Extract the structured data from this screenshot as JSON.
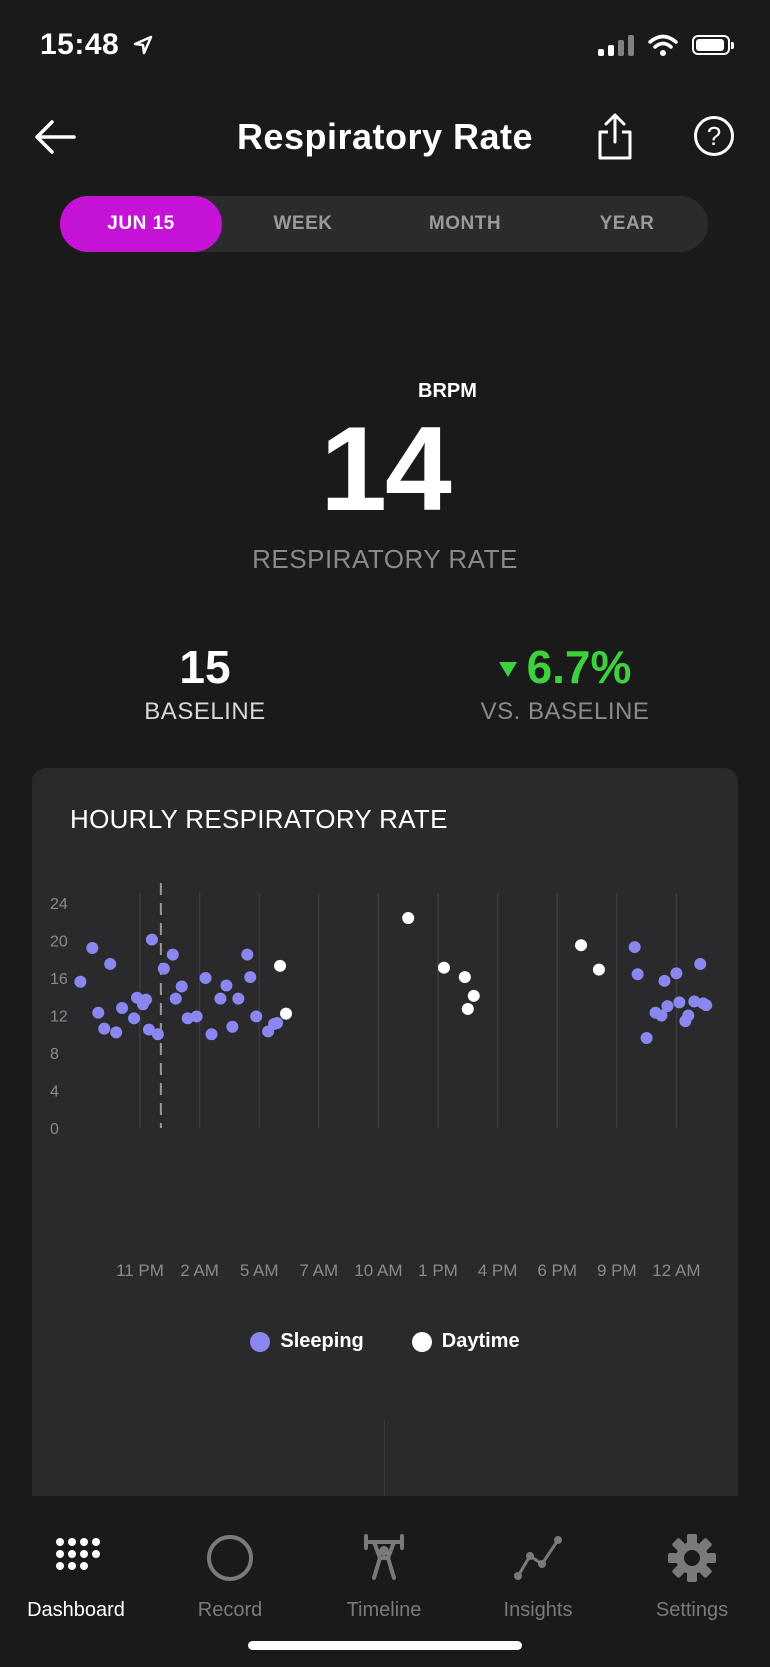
{
  "status_bar": {
    "time": "15:48"
  },
  "header": {
    "title": "Respiratory Rate"
  },
  "segments": [
    {
      "label": "JUN 15",
      "active": true
    },
    {
      "label": "WEEK",
      "active": false
    },
    {
      "label": "MONTH",
      "active": false
    },
    {
      "label": "YEAR",
      "active": false
    }
  ],
  "metric": {
    "unit": "BRPM",
    "value": "14",
    "label": "RESPIRATORY RATE"
  },
  "baseline": {
    "value": "15",
    "label": "BASELINE"
  },
  "delta": {
    "value": "6.7%",
    "label": "VS. BASELINE",
    "direction": "down",
    "color": "#3dd13d"
  },
  "card": {
    "title": "HOURLY RESPIRATORY RATE"
  },
  "legend": [
    {
      "label": "Sleeping",
      "color": "#8a87f0"
    },
    {
      "label": "Daytime",
      "color": "#ffffff"
    }
  ],
  "chart_data": {
    "type": "scatter",
    "ylim": [
      0,
      24
    ],
    "y_ticks": [
      0,
      4,
      8,
      12,
      16,
      20,
      24
    ],
    "x_ticks": [
      "11 PM",
      "2 AM",
      "5 AM",
      "7 AM",
      "10 AM",
      "1 PM",
      "4 PM",
      "6 PM",
      "9 PM",
      "12 AM"
    ],
    "series": [
      {
        "name": "Sleeping",
        "color": "#8a87f0",
        "points": [
          [
            -1.0,
            15.6
          ],
          [
            -0.8,
            19.2
          ],
          [
            -0.7,
            12.3
          ],
          [
            -0.6,
            10.6
          ],
          [
            -0.5,
            17.5
          ],
          [
            -0.4,
            10.2
          ],
          [
            -0.3,
            12.8
          ],
          [
            -0.1,
            11.7
          ],
          [
            -0.05,
            13.9
          ],
          [
            0.05,
            13.2
          ],
          [
            0.1,
            13.7
          ],
          [
            0.15,
            10.5
          ],
          [
            0.2,
            20.1
          ],
          [
            0.3,
            10.0
          ],
          [
            0.4,
            17.0
          ],
          [
            0.55,
            18.5
          ],
          [
            0.6,
            13.8
          ],
          [
            0.7,
            15.1
          ],
          [
            0.8,
            11.7
          ],
          [
            0.95,
            11.9
          ],
          [
            1.1,
            16.0
          ],
          [
            1.2,
            10.0
          ],
          [
            1.35,
            13.8
          ],
          [
            1.45,
            15.2
          ],
          [
            1.55,
            10.8
          ],
          [
            1.65,
            13.8
          ],
          [
            1.8,
            18.5
          ],
          [
            1.85,
            16.1
          ],
          [
            1.95,
            11.9
          ],
          [
            2.15,
            10.3
          ],
          [
            2.25,
            11.1
          ],
          [
            2.3,
            11.2
          ],
          [
            8.3,
            19.3
          ],
          [
            8.35,
            16.4
          ],
          [
            8.5,
            9.6
          ],
          [
            8.65,
            12.3
          ],
          [
            8.75,
            12.0
          ],
          [
            8.8,
            15.7
          ],
          [
            8.85,
            13.0
          ],
          [
            9.0,
            16.5
          ],
          [
            9.05,
            13.4
          ],
          [
            9.15,
            11.4
          ],
          [
            9.2,
            12.0
          ],
          [
            9.3,
            13.5
          ],
          [
            9.4,
            17.5
          ],
          [
            9.45,
            13.3
          ],
          [
            9.5,
            13.1
          ]
        ]
      },
      {
        "name": "Daytime",
        "color": "#ffffff",
        "points": [
          [
            2.35,
            17.3
          ],
          [
            2.45,
            12.2
          ],
          [
            4.5,
            22.4
          ],
          [
            5.1,
            17.1
          ],
          [
            5.45,
            16.1
          ],
          [
            5.5,
            12.7
          ],
          [
            5.6,
            14.1
          ],
          [
            7.4,
            19.5
          ],
          [
            7.7,
            16.9
          ]
        ]
      }
    ]
  },
  "tabs": [
    {
      "label": "Dashboard",
      "icon": "dots-grid-icon",
      "active": true
    },
    {
      "label": "Record",
      "icon": "circle-icon",
      "active": false
    },
    {
      "label": "Timeline",
      "icon": "weightlifter-icon",
      "active": false
    },
    {
      "label": "Insights",
      "icon": "line-graph-icon",
      "active": false
    },
    {
      "label": "Settings",
      "icon": "gear-icon",
      "active": false
    }
  ]
}
